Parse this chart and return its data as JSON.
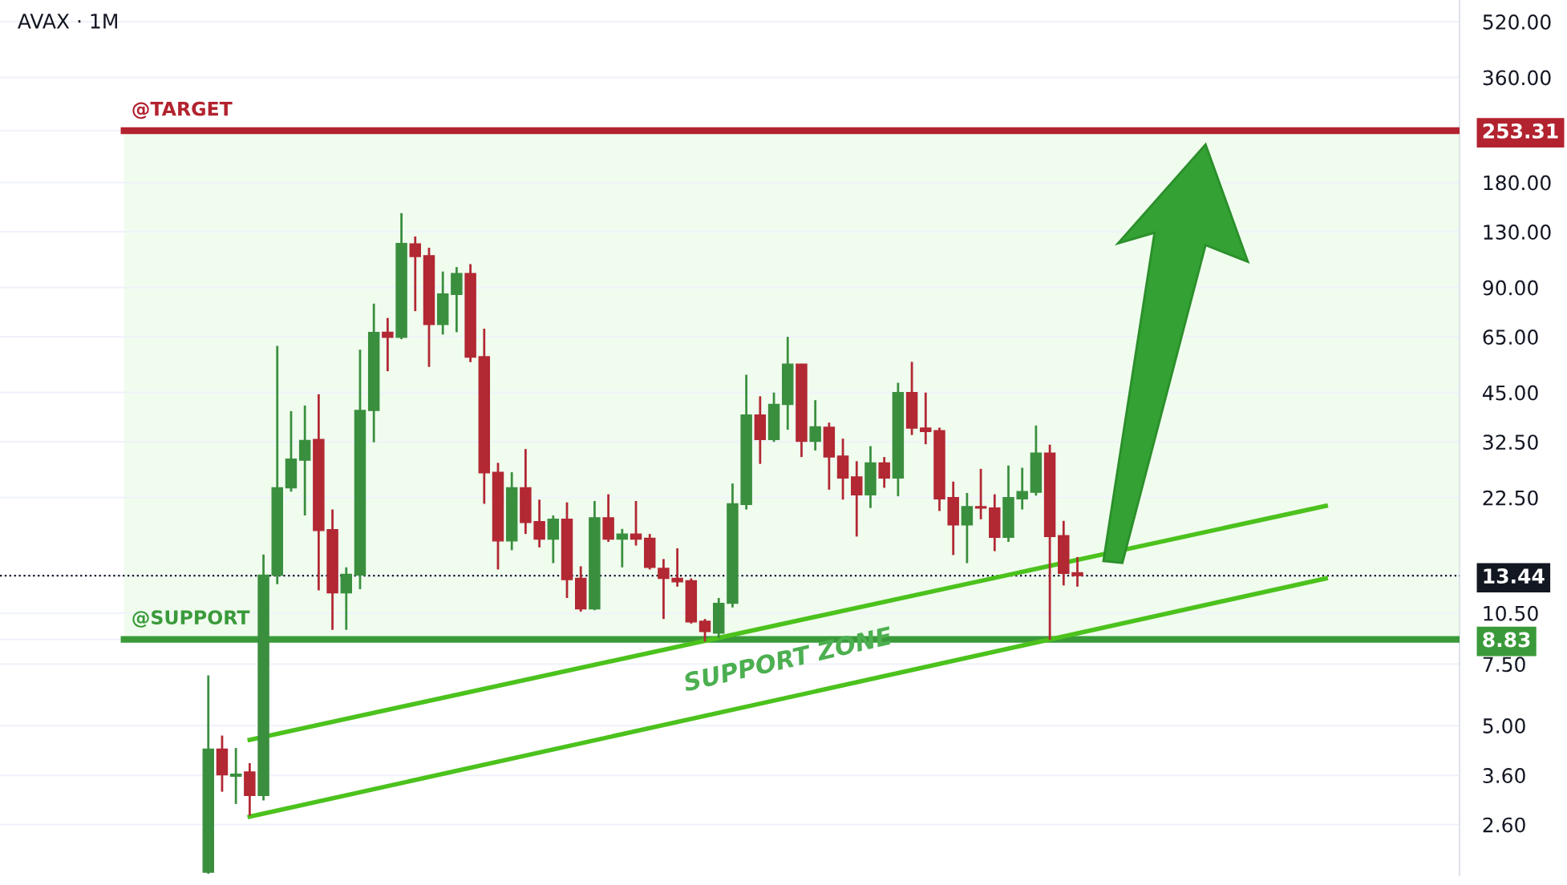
{
  "chart_data": {
    "type": "candlestick",
    "title": "AVAX · 1M",
    "categories": [
      null,
      null,
      null,
      null,
      null,
      null,
      null,
      null,
      null,
      null,
      null,
      null,
      null,
      null,
      null,
      null,
      null,
      null,
      null,
      null,
      null,
      null,
      null,
      null,
      null,
      null,
      null,
      null,
      null,
      null,
      null,
      null,
      null,
      null,
      null,
      null,
      null,
      null,
      null,
      null,
      null,
      null,
      null,
      null,
      null,
      null,
      null,
      null,
      null,
      null,
      null,
      null,
      null,
      null,
      null,
      null,
      null,
      null,
      null,
      null,
      null,
      null,
      null,
      null,
      null,
      null,
      null,
      null,
      null,
      null,
      null,
      null,
      null,
      null,
      null,
      null,
      null,
      null,
      null,
      null,
      null,
      null,
      null,
      null,
      null,
      null,
      null,
      null,
      null,
      null,
      null
    ],
    "ohlc": [
      [
        1.9,
        6.96,
        1.88,
        4.28
      ],
      [
        4.28,
        4.68,
        3.23,
        3.61
      ],
      [
        3.58,
        4.31,
        2.98,
        3.63
      ],
      [
        3.68,
        3.9,
        2.76,
        3.15
      ],
      [
        3.15,
        15.45,
        3.05,
        13.48
      ],
      [
        13.48,
        61.2,
        12.7,
        24.0
      ],
      [
        24.0,
        39.8,
        23.4,
        29.0
      ],
      [
        28.8,
        41.3,
        20.0,
        32.8
      ],
      [
        33.0,
        44.5,
        12.2,
        18.1
      ],
      [
        18.2,
        20.8,
        9.4,
        12.0
      ],
      [
        12.0,
        14.2,
        9.4,
        13.56
      ],
      [
        13.5,
        59.7,
        12.3,
        40.0
      ],
      [
        40.0,
        80.9,
        32.4,
        66.9
      ],
      [
        67.0,
        73.6,
        51.8,
        64.8
      ],
      [
        64.8,
        147,
        64,
        120.3
      ],
      [
        120,
        126,
        77,
        110.4
      ],
      [
        111,
        117,
        53.3,
        70.5
      ],
      [
        70.5,
        100,
        66,
        86.3
      ],
      [
        86,
        103,
        67,
        98.7
      ],
      [
        98.7,
        105,
        55,
        56.8
      ],
      [
        57,
        68.6,
        21.6,
        26.5
      ],
      [
        26.6,
        28.3,
        14.0,
        16.9
      ],
      [
        16.9,
        26.6,
        15.9,
        24.0
      ],
      [
        24.0,
        31,
        17.7,
        19.1
      ],
      [
        19.2,
        22.2,
        16.2,
        17.1
      ],
      [
        17.1,
        20.0,
        14.6,
        19.5
      ],
      [
        19.5,
        21.8,
        11.6,
        13.1
      ],
      [
        13.2,
        14.3,
        10.6,
        10.8
      ],
      [
        10.8,
        22.0,
        10.7,
        19.7
      ],
      [
        19.7,
        23.0,
        16.8,
        17.1
      ],
      [
        17.1,
        18.3,
        14.2,
        17.7
      ],
      [
        17.7,
        22.0,
        16.4,
        17.1
      ],
      [
        17.2,
        17.7,
        14.0,
        14.2
      ],
      [
        14.1,
        15.0,
        10.1,
        13.2
      ],
      [
        13.2,
        16.1,
        12.5,
        12.9
      ],
      [
        13.0,
        13.2,
        9.8,
        9.9
      ],
      [
        9.95,
        10.1,
        8.7,
        9.3
      ],
      [
        9.2,
        11.6,
        8.9,
        11.2
      ],
      [
        11.2,
        24.7,
        10.9,
        21.6
      ],
      [
        21.5,
        50.6,
        20.8,
        38.8
      ],
      [
        38.8,
        43.9,
        28.1,
        33.0
      ],
      [
        33.0,
        45,
        32.5,
        41.6
      ],
      [
        41.6,
        65,
        35.2,
        54.3
      ],
      [
        54.3,
        54.3,
        29.4,
        32.6
      ],
      [
        32.6,
        42.8,
        30.7,
        35.9
      ],
      [
        35.8,
        36.9,
        23.7,
        29.4
      ],
      [
        29.6,
        33.2,
        22.2,
        25.6
      ],
      [
        25.8,
        28.6,
        17.4,
        22.9
      ],
      [
        22.9,
        31.6,
        21.0,
        28.3
      ],
      [
        28.3,
        29.4,
        24,
        25.6
      ],
      [
        25.6,
        48,
        22.7,
        45
      ],
      [
        45,
        55.1,
        34,
        35.6
      ],
      [
        35.6,
        45,
        32,
        34.8
      ],
      [
        35,
        35.7,
        20.6,
        22.3
      ],
      [
        22.5,
        25,
        15.4,
        18.8
      ],
      [
        18.8,
        23.2,
        14.6,
        21.2
      ],
      [
        21.2,
        27.2,
        19.5,
        21.0
      ],
      [
        21.0,
        23.0,
        15.8,
        17.3
      ],
      [
        17.3,
        27.8,
        16.8,
        22.5
      ],
      [
        22.3,
        27.4,
        20.8,
        23.4
      ],
      [
        23.3,
        36.2,
        22.8,
        30.2
      ],
      [
        30.2,
        31.9,
        8.8,
        17.4
      ],
      [
        17.5,
        19.3,
        12.6,
        13.65
      ],
      [
        13.7,
        15.2,
        12.5,
        13.44
      ],
      null,
      null,
      null,
      null,
      null,
      null,
      null,
      null,
      null,
      null,
      null,
      null,
      null,
      null,
      null,
      null,
      null,
      null,
      null,
      null,
      null,
      null,
      null,
      null,
      null,
      null,
      null
    ],
    "colors": [
      "#3a8f3f",
      "#b22833",
      "#3a8f3f",
      "#b22833",
      "#3a8f3f",
      "#3a8f3f",
      "#3a8f3f",
      "#3a8f3f",
      "#b22833",
      "#b22833",
      "#3a8f3f",
      "#3a8f3f",
      "#3a8f3f",
      "#b22833",
      "#3a8f3f",
      "#b22833",
      "#b22833",
      "#3a8f3f",
      "#3a8f3f",
      "#b22833",
      "#b22833",
      "#b22833",
      "#3a8f3f",
      "#b22833",
      "#b22833",
      "#3a8f3f",
      "#b22833",
      "#b22833",
      "#3a8f3f",
      "#b22833",
      "#3a8f3f",
      "#b22833",
      "#b22833",
      "#b22833",
      "#b22833",
      "#b22833",
      "#b22833",
      "#3a8f3f",
      "#3a8f3f",
      "#3a8f3f",
      "#b22833",
      "#3a8f3f",
      "#3a8f3f",
      "#b22833",
      "#3a8f3f",
      "#b22833",
      "#b22833",
      "#b22833",
      "#3a8f3f",
      "#b22833",
      "#3a8f3f",
      "#b22833",
      "#b22833",
      "#b22833",
      "#b22833",
      "#3a8f3f",
      "#b22833",
      "#b22833",
      "#3a8f3f",
      "#3a8f3f",
      "#3a8f3f",
      "#b22833",
      "#b22833",
      "#b22833",
      null,
      null,
      null,
      null,
      null,
      null,
      null,
      null,
      null,
      null,
      null,
      null,
      null,
      null,
      null,
      null,
      null,
      null,
      null,
      null,
      null,
      null,
      null,
      null,
      null,
      null,
      null
    ],
    "series": [
      {
        "type": "line",
        "color": "#4cc21d",
        "values": [
          null,
          null,
          null,
          4.55,
          null,
          null,
          null,
          null,
          null,
          null,
          null,
          null,
          null,
          null,
          null,
          null,
          null,
          null,
          null,
          null,
          null,
          null,
          null,
          null,
          null,
          null,
          null,
          null,
          null,
          null,
          null,
          null,
          null,
          null,
          null,
          null,
          null,
          null,
          null,
          null,
          null,
          null,
          null,
          null,
          null,
          null,
          null,
          null,
          null,
          null,
          null,
          null,
          null,
          null,
          null,
          null,
          null,
          null,
          null,
          null,
          null,
          null,
          null,
          null,
          null,
          null,
          null,
          null,
          null,
          null,
          null,
          null,
          null,
          null,
          null,
          null,
          null,
          null,
          null,
          null,
          null,
          21.3,
          null,
          null,
          null,
          null,
          null,
          null,
          null,
          null,
          null
        ]
      },
      {
        "type": "line",
        "color": "#4cc21d",
        "values": [
          null,
          null,
          null,
          2.74,
          null,
          null,
          null,
          null,
          null,
          null,
          null,
          null,
          null,
          null,
          null,
          null,
          null,
          null,
          null,
          null,
          null,
          null,
          null,
          null,
          null,
          null,
          null,
          null,
          null,
          null,
          null,
          null,
          null,
          null,
          null,
          null,
          null,
          null,
          null,
          null,
          null,
          null,
          null,
          null,
          null,
          null,
          null,
          null,
          null,
          null,
          null,
          null,
          null,
          null,
          null,
          null,
          null,
          null,
          null,
          null,
          null,
          null,
          null,
          null,
          null,
          null,
          null,
          null,
          null,
          null,
          null,
          null,
          null,
          null,
          null,
          null,
          null,
          null,
          null,
          null,
          null,
          13.2,
          null,
          null,
          null,
          null,
          null,
          null,
          null,
          null,
          null
        ]
      }
    ],
    "log": "y",
    "ylim": [
      1.86,
      600
    ],
    "yticks": [
      {
        "value": 520,
        "label": "520.00"
      },
      {
        "value": 360,
        "label": "360.00"
      },
      {
        "value": 180,
        "label": "180.00"
      },
      {
        "value": 130,
        "label": "130.00"
      },
      {
        "value": 90,
        "label": "90.00"
      },
      {
        "value": 65,
        "label": "65.00"
      },
      {
        "value": 45,
        "label": "45.00"
      },
      {
        "value": 32.5,
        "label": "32.50"
      },
      {
        "value": 22.5,
        "label": "22.50"
      },
      {
        "value": 253.31,
        "label": "253.31"
      },
      {
        "value": 13.44,
        "label": "13.44"
      },
      {
        "value": 8.83,
        "label": "8.83"
      },
      {
        "value": 10.5,
        "label": "10.50"
      },
      {
        "value": 7.5,
        "label": "7.50"
      },
      {
        "value": 5,
        "label": "5.00"
      },
      {
        "value": 3.6,
        "label": "3.60"
      },
      {
        "value": 2.6,
        "label": "2.60"
      }
    ],
    "tick_labels": "y",
    "grid": "y",
    "bands": [
      {
        "axis": "y",
        "from": 8.83,
        "to": 253.31,
        "color": "#f0fcee"
      }
    ],
    "ref_lines": [
      {
        "axis": "y",
        "value": 253.31,
        "label": "@TARGET",
        "color": "#b2232f",
        "line_style": "solid"
      },
      {
        "axis": "y",
        "value": 8.83,
        "label": "@SUPPORT",
        "color": "#3a9a3a",
        "line_style": "solid"
      },
      {
        "axis": "y",
        "value": 13.44,
        "label": null,
        "color": "#131722",
        "line_style": "dotted"
      }
    ],
    "annotations": [
      "SUPPORT ZONE"
    ]
  }
}
